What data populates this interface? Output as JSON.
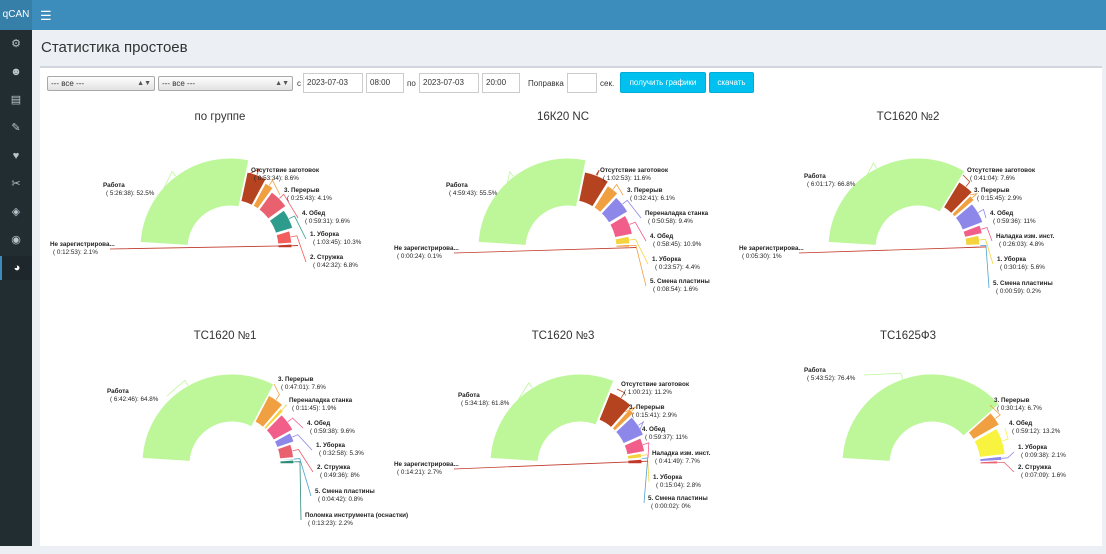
{
  "app": {
    "logo": "qCAN",
    "menu_icon": "hamburger-icon"
  },
  "sidebar": {
    "items": [
      {
        "icon": "gear-icon",
        "glyph": "⚙"
      },
      {
        "icon": "users-icon",
        "glyph": "☻"
      },
      {
        "icon": "book-icon",
        "glyph": "▤"
      },
      {
        "icon": "tools-icon",
        "glyph": "✎"
      },
      {
        "icon": "heart-icon",
        "glyph": "♥"
      },
      {
        "icon": "wrench-icon",
        "glyph": "✂"
      },
      {
        "icon": "dropbox-icon",
        "glyph": "◈"
      },
      {
        "icon": "eye-icon",
        "glyph": "◉"
      },
      {
        "icon": "pie-chart-icon",
        "glyph": "◕"
      }
    ]
  },
  "page": {
    "title": "Статистика простоев"
  },
  "filters": {
    "select1": "--- все ---",
    "select2": "--- все ---",
    "from_label": "с",
    "from_date": "2023-07-03",
    "from_time": "08:00",
    "to_label": "по",
    "to_date": "2023-07-03",
    "to_time": "20:00",
    "correction_label": "Поправка",
    "correction_value": "",
    "seconds_label": "сек.",
    "get_charts_button": "получить графики",
    "download_button": "скачать"
  },
  "colors": {
    "Работа": "#bdf79a",
    "Не зарегистрирова...": "#c0392b",
    "Отсутствие заготовок": "#b5431f",
    "3. Перерыв": "#f0a040",
    "4. Обед": "#8d87ea",
    "1. Уборка": "#f4d33f",
    "2. Стружка": "#e9616f",
    "Переналадка станка": "#f25e8a",
    "5. Смена пластины": "#4fa3d0",
    "Наладка изм. инст.": "#c0c0c0",
    "Поломка инструмента (оснастки)": "#2e8b78",
    "Уборка (группа)": "#2e9c8c"
  },
  "chart_data": [
    {
      "type": "pie",
      "title": "по группе",
      "slices": [
        {
          "label": "Работа",
          "time": "5:26:38",
          "percent": 52.5,
          "color": "#bdf79a"
        },
        {
          "label": "Отсутствие заготовок",
          "time": "0:53:34",
          "percent": 8.6,
          "color": "#b5431f"
        },
        {
          "label": "3. Перерыв",
          "time": "0:25:43",
          "percent": 4.1,
          "color": "#f0a040"
        },
        {
          "label": "4. Обед",
          "time": "0:59:31",
          "percent": 9.6,
          "color": "#e9616f"
        },
        {
          "label": "1. Уборка",
          "time": "1:03:45",
          "percent": 10.3,
          "color": "#2e9c8c"
        },
        {
          "label": "2. Стружка",
          "time": "0:42:32",
          "percent": 6.8,
          "color": "#f25e5e"
        },
        {
          "label": "Не зарегистрирова...",
          "time": "0:12:53",
          "percent": 2.1,
          "color": "#c0392b"
        }
      ]
    },
    {
      "type": "pie",
      "title": "16К20 NC",
      "slices": [
        {
          "label": "Работа",
          "time": "4:59:43",
          "percent": 55.5,
          "color": "#bdf79a"
        },
        {
          "label": "Отсутствие заготовок",
          "time": "1:02:53",
          "percent": 11.6,
          "color": "#b5431f"
        },
        {
          "label": "3. Перерыв",
          "time": "0:32:41",
          "percent": 6.1,
          "color": "#f0a040"
        },
        {
          "label": "Переналадка станка",
          "time": "0:50:58",
          "percent": 9.4,
          "color": "#8d87ea"
        },
        {
          "label": "4. Обед",
          "time": "0:58:45",
          "percent": 10.9,
          "color": "#f25e8a"
        },
        {
          "label": "1. Уборка",
          "time": "0:23:57",
          "percent": 4.4,
          "color": "#f4d33f"
        },
        {
          "label": "5. Смена пластины",
          "time": "0:08:54",
          "percent": 1.6,
          "color": "#f0a040"
        },
        {
          "label": "Не зарегистрирова...",
          "time": "0:00:24",
          "percent": 0.1,
          "color": "#c0392b"
        }
      ]
    },
    {
      "type": "pie",
      "title": "ТС1620 №2",
      "slices": [
        {
          "label": "Работа",
          "time": "6:01:17",
          "percent": 66.8,
          "color": "#bdf79a"
        },
        {
          "label": "Отсутствие заготовок",
          "time": "0:41:04",
          "percent": 7.6,
          "color": "#b5431f"
        },
        {
          "label": "3. Перерыв",
          "time": "0:15:45",
          "percent": 2.9,
          "color": "#f0a040"
        },
        {
          "label": "4. Обед",
          "time": "0:59:36",
          "percent": 11,
          "color": "#8d87ea"
        },
        {
          "label": "Наладка изм. инст.",
          "time": "0:26:03",
          "percent": 4.8,
          "color": "#f25e8a"
        },
        {
          "label": "1. Уборка",
          "time": "0:30:16",
          "percent": 5.6,
          "color": "#f4d33f"
        },
        {
          "label": "5. Смена пластины",
          "time": "0:00:59",
          "percent": 0.2,
          "color": "#4fa3d0"
        },
        {
          "label": "Не зарегистрирова...",
          "time": "0:05:30",
          "percent": 1,
          "color": "#c0392b"
        }
      ]
    },
    {
      "type": "pie",
      "title": "ТС1620 №1",
      "slices": [
        {
          "label": "Работа",
          "time": "6:42:46",
          "percent": 64.8,
          "color": "#bdf79a"
        },
        {
          "label": "3. Перерыв",
          "time": "0:47:01",
          "percent": 7.6,
          "color": "#f0a040"
        },
        {
          "label": "Переналадка станка",
          "time": "0:11:45",
          "percent": 1.9,
          "color": "#f4d33f"
        },
        {
          "label": "4. Обед",
          "time": "0:59:38",
          "percent": 9.6,
          "color": "#f25e8a"
        },
        {
          "label": "1. Уборка",
          "time": "0:32:58",
          "percent": 5.3,
          "color": "#8d87ea"
        },
        {
          "label": "2. Стружка",
          "time": "0:49:36",
          "percent": 8,
          "color": "#e9616f"
        },
        {
          "label": "5. Смена пластины",
          "time": "0:04:42",
          "percent": 0.8,
          "color": "#4fa3d0"
        },
        {
          "label": "Поломка инструмента (оснастки)",
          "time": "0:13:23",
          "percent": 2.2,
          "color": "#2e8b78"
        }
      ]
    },
    {
      "type": "pie",
      "title": "ТС1620 №3",
      "slices": [
        {
          "label": "Работа",
          "time": "5:34:18",
          "percent": 61.8,
          "color": "#bdf79a"
        },
        {
          "label": "Отсутствие заготовок",
          "time": "1:00:21",
          "percent": 11.2,
          "color": "#b5431f"
        },
        {
          "label": "3. Перерыв",
          "time": "0:15:41",
          "percent": 2.9,
          "color": "#f0a040"
        },
        {
          "label": "4. Обед",
          "time": "0:59:37",
          "percent": 11,
          "color": "#8d87ea"
        },
        {
          "label": "Наладка изм. инст.",
          "time": "0:41:49",
          "percent": 7.7,
          "color": "#f25e8a"
        },
        {
          "label": "1. Уборка",
          "time": "0:15:04",
          "percent": 2.8,
          "color": "#f4d33f"
        },
        {
          "label": "5. Смена пластины",
          "time": "0:00:02",
          "percent": 0,
          "color": "#4fa3d0"
        },
        {
          "label": "Не зарегистрирова...",
          "time": "0:14:21",
          "percent": 2.7,
          "color": "#c0392b"
        }
      ]
    },
    {
      "type": "pie",
      "title": "ТС1625Ф3",
      "slices": [
        {
          "label": "Работа",
          "time": "5:43:52",
          "percent": 76.4,
          "color": "#bdf79a"
        },
        {
          "label": "3. Перерыв",
          "time": "0:30:14",
          "percent": 6.7,
          "color": "#f0a040"
        },
        {
          "label": "4. Обед",
          "time": "0:59:12",
          "percent": 13.2,
          "color": "#f8f33f"
        },
        {
          "label": "1. Уборка",
          "time": "0:09:38",
          "percent": 2.1,
          "color": "#8d87ea"
        },
        {
          "label": "2. Стружка",
          "time": "0:07:09",
          "percent": 1.6,
          "color": "#e9616f"
        }
      ]
    }
  ]
}
